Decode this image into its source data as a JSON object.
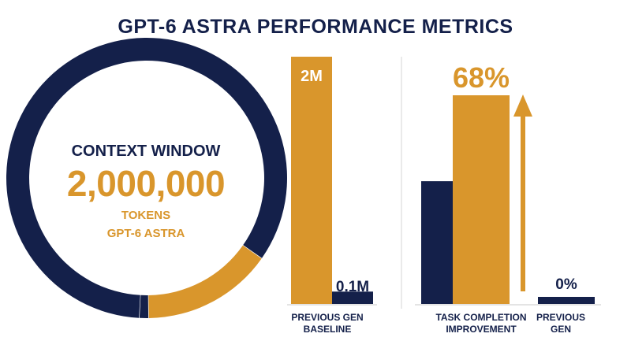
{
  "title": "GPT-6 ASTRA PERFORMANCE METRICS",
  "donut": {
    "label": "CONTEXT WINDOW",
    "value": "2,000,000",
    "unit": "TOKENS",
    "model": "GPT-6 ASTRA"
  },
  "colors": {
    "navy": "#14204a",
    "gold": "#d9962c",
    "divider": "#d4d4d4"
  },
  "chart_data": [
    {
      "type": "pie",
      "title": "CONTEXT WINDOW",
      "values": [
        0.84,
        0.15,
        0.01
      ],
      "colors": [
        "#14204a",
        "#d9962c",
        "#14204a"
      ]
    },
    {
      "type": "bar",
      "categories": [
        "",
        "PREVIOUS GEN BASELINE"
      ],
      "values": [
        2,
        0.1
      ],
      "data_labels": [
        "2M",
        "0.1M"
      ],
      "colors": [
        "#d9962c",
        "#14204a"
      ]
    },
    {
      "type": "bar",
      "categories": [
        "TASK COMPLETION IMPROVEMENT",
        "PREVIOUS GEN"
      ],
      "series": [
        {
          "values": [
            68,
            0
          ]
        }
      ],
      "navy_reference": 40,
      "data_labels": [
        "68%",
        "0%"
      ],
      "colors": [
        "#d9962c",
        "#14204a"
      ]
    }
  ],
  "labels": {
    "bars1_category": "PREVIOUS GEN\nBASELINE",
    "bars2_cat1": "TASK COMPLETION\nIMPROVEMENT",
    "bars2_cat2": "PREVIOUS\nGEN"
  }
}
